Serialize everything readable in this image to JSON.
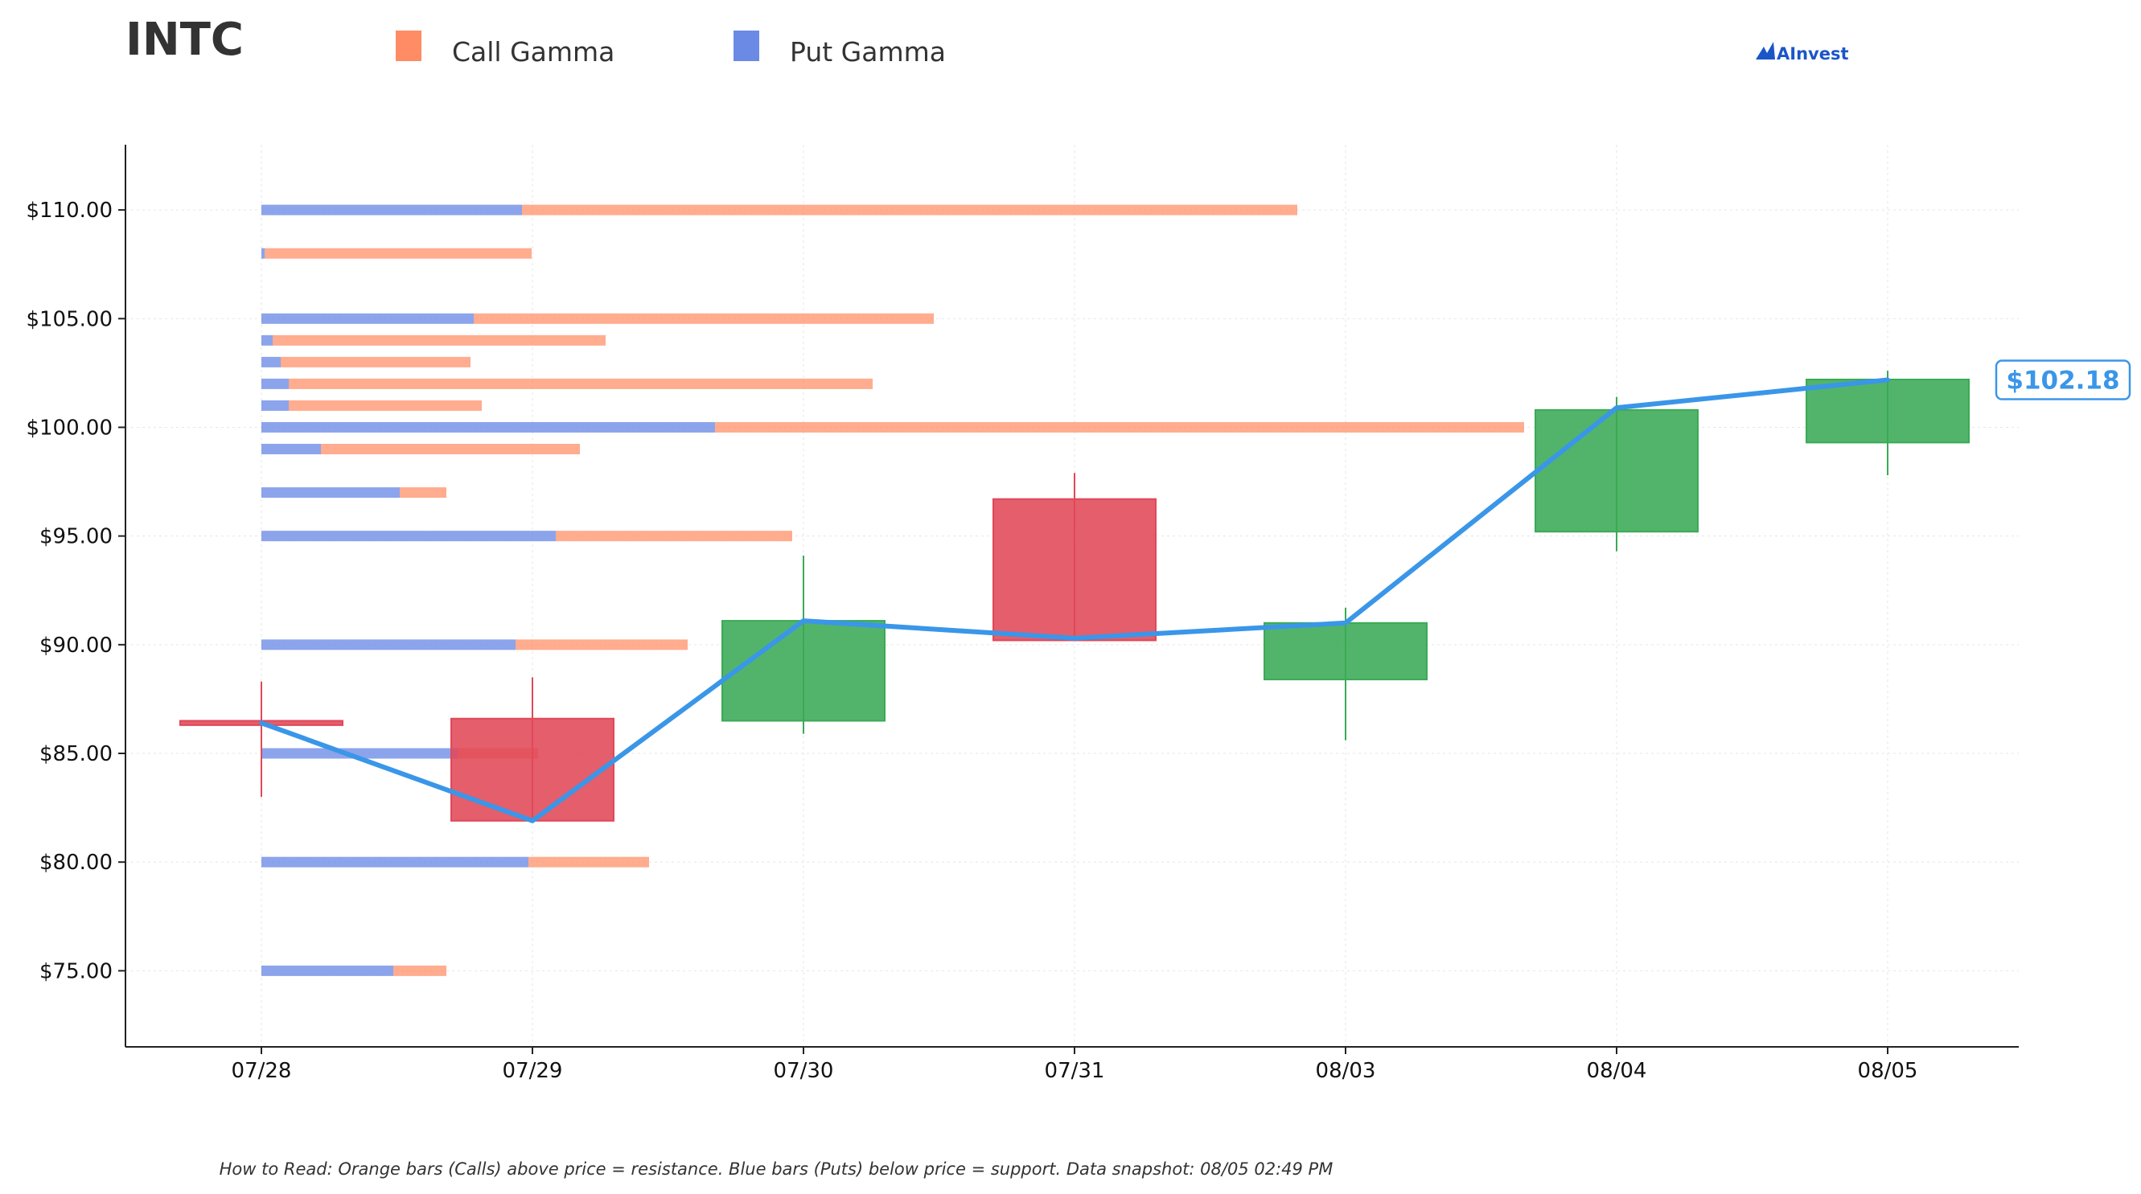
{
  "chart_data": {
    "type": "candlestick",
    "ticker": "INTC",
    "brand": "AInvest",
    "legend": [
      {
        "label": "Call Gamma",
        "color": "#ff8c64"
      },
      {
        "label": "Put Gamma",
        "color": "#6b8ae6"
      }
    ],
    "footnote": "How to Read: Orange bars (Calls) above price = resistance. Blue bars (Puts) below price = support. Data snapshot: 08/05 02:49 PM",
    "categories": [
      "07/28",
      "07/29",
      "07/30",
      "07/31",
      "08/03",
      "08/04",
      "08/05"
    ],
    "y_ticks": [
      75,
      80,
      85,
      90,
      95,
      100,
      105,
      110
    ],
    "y_tick_labels": [
      "$75.00",
      "$80.00",
      "$85.00",
      "$90.00",
      "$95.00",
      "$100.00",
      "$105.00",
      "$110.00"
    ],
    "ylim": [
      71.5,
      113
    ],
    "grid": true,
    "legend_position": "top-left",
    "candles": [
      {
        "date": "07/28",
        "open": 86.5,
        "close": 86.3,
        "high": 88.3,
        "low": 83.0
      },
      {
        "date": "07/29",
        "open": 86.6,
        "close": 81.9,
        "high": 88.5,
        "low": 81.9
      },
      {
        "date": "07/30",
        "open": 86.5,
        "close": 91.1,
        "high": 94.1,
        "low": 85.9
      },
      {
        "date": "07/31",
        "open": 96.7,
        "close": 90.2,
        "high": 97.9,
        "low": 90.2
      },
      {
        "date": "08/03",
        "open": 88.4,
        "close": 91.0,
        "high": 91.7,
        "low": 85.6
      },
      {
        "date": "08/04",
        "open": 95.2,
        "close": 100.8,
        "high": 101.4,
        "low": 94.3
      },
      {
        "date": "08/05",
        "open": 99.3,
        "close": 102.2,
        "high": 102.6,
        "low": 97.8
      }
    ],
    "price_line": [
      {
        "date": "07/28",
        "price": 86.4
      },
      {
        "date": "07/29",
        "price": 81.9
      },
      {
        "date": "07/30",
        "price": 91.1
      },
      {
        "date": "07/31",
        "price": 90.3
      },
      {
        "date": "08/03",
        "price": 91.0
      },
      {
        "date": "08/04",
        "price": 100.9
      },
      {
        "date": "08/05",
        "price": 102.18
      }
    ],
    "last_price_label": "$102.18",
    "colors": {
      "up": "#3aaa55",
      "down": "#e04858",
      "price_line": "#3a96e8",
      "call": "#ff8c64",
      "put": "#6b8ae6"
    },
    "gamma_bars": [
      {
        "strike": 110,
        "put": 1.62,
        "call": 4.82
      },
      {
        "strike": 108,
        "put": 0.02,
        "call": 1.66
      },
      {
        "strike": 105,
        "put": 1.32,
        "call": 2.86
      },
      {
        "strike": 104,
        "put": 0.07,
        "call": 2.07
      },
      {
        "strike": 103,
        "put": 0.12,
        "call": 1.18
      },
      {
        "strike": 102,
        "put": 0.17,
        "call": 3.63
      },
      {
        "strike": 101,
        "put": 0.17,
        "call": 1.2
      },
      {
        "strike": 100,
        "put": 2.82,
        "call": 5.03
      },
      {
        "strike": 99,
        "put": 0.37,
        "call": 1.61
      },
      {
        "strike": 97,
        "put": 0.86,
        "call": 0.29
      },
      {
        "strike": 95,
        "put": 1.83,
        "call": 1.47
      },
      {
        "strike": 90,
        "put": 1.58,
        "call": 1.07
      },
      {
        "strike": 85,
        "put": 1.22,
        "call": 0.5
      },
      {
        "strike": 80,
        "put": 1.66,
        "call": 0.75
      },
      {
        "strike": 75,
        "put": 0.82,
        "call": 0.33
      }
    ]
  }
}
